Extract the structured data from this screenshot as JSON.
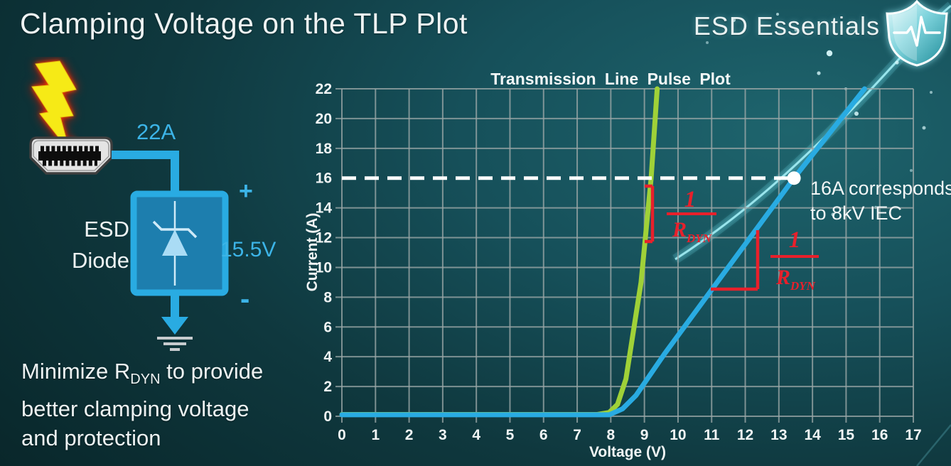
{
  "slide": {
    "title": "Clamping Voltage on the TLP Plot",
    "brand": "ESD Essentials"
  },
  "diagram": {
    "surge_current": "22A",
    "esd_label_line1": "ESD",
    "esd_label_line2": "Diode",
    "plus_sign": "+",
    "minus_sign": "-",
    "clamp_voltage": "15.5V"
  },
  "footer": {
    "line1_pre": "Minimize R",
    "line1_sub": "DYN",
    "line1_post": " to provide",
    "line2": "better clamping voltage",
    "line3": "and protection"
  },
  "chart_data": {
    "type": "line",
    "title": "Transmission Line Pulse Plot",
    "xlabel": "Voltage (V)",
    "ylabel": "Current (A)",
    "xlim": [
      0,
      17
    ],
    "ylim": [
      0,
      22
    ],
    "x_tick_step": 1,
    "y_tick_step": 2,
    "grid": true,
    "legend": "none",
    "series": [
      {
        "name": "green curve (steep I-V, low RDYN)",
        "color": "#9fd138",
        "stroke_width": 7,
        "points": [
          [
            0,
            0.12
          ],
          [
            7.6,
            0.12
          ],
          [
            7.95,
            0.25
          ],
          [
            8.2,
            0.8
          ],
          [
            8.45,
            2.5
          ],
          [
            8.9,
            9
          ],
          [
            9.2,
            16
          ],
          [
            9.38,
            22
          ]
        ]
      },
      {
        "name": "blue curve (shallower I-V, higher RDYN)",
        "color": "#29abe2",
        "stroke_width": 7,
        "points": [
          [
            0,
            0.1
          ],
          [
            7.95,
            0.1
          ],
          [
            8.35,
            0.5
          ],
          [
            8.75,
            1.4
          ],
          [
            9.6,
            4.2
          ],
          [
            11,
            8.5
          ],
          [
            13.45,
            16
          ],
          [
            15.55,
            22
          ]
        ]
      }
    ],
    "annotations": {
      "threshold": {
        "current_a": 16,
        "line_style": "dashed",
        "color": "#ffffff",
        "x_end": 13.45
      },
      "marker": {
        "point": [
          13.45,
          16
        ],
        "label_line1": "16A corresponds",
        "label_line2": "to 8kV IEC"
      },
      "slope_labels": {
        "numerator": "1",
        "denominator_symbol": "R",
        "denominator_sub": "DYN",
        "color": "#e8202b",
        "count": 2
      }
    }
  },
  "colors": {
    "accent_blue": "#29abe2",
    "accent_green": "#9fd138",
    "annotation_red": "#e8202b",
    "label_cyan": "#3cb4e7",
    "grid_gray": "#99a6a6",
    "bolt_yellow": "#f6ea16"
  }
}
